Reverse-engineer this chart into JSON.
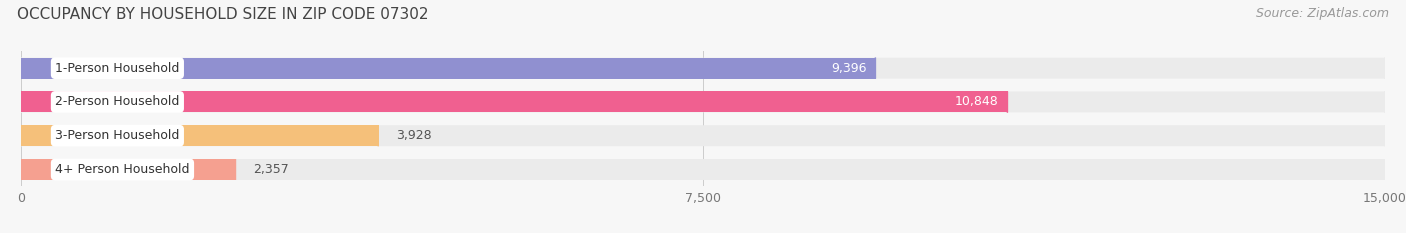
{
  "title": "OCCUPANCY BY HOUSEHOLD SIZE IN ZIP CODE 07302",
  "source": "Source: ZipAtlas.com",
  "categories": [
    "1-Person Household",
    "2-Person Household",
    "3-Person Household",
    "4+ Person Household"
  ],
  "values": [
    9396,
    10848,
    3928,
    2357
  ],
  "bar_colors": [
    "#9090d0",
    "#f06090",
    "#f5c07a",
    "#f5a090"
  ],
  "bar_bg_color": "#ebebeb",
  "xlim": [
    0,
    15000
  ],
  "xticks": [
    0,
    7500,
    15000
  ],
  "xtick_labels": [
    "0",
    "7,500",
    "15,000"
  ],
  "value_label_white": [
    true,
    true,
    false,
    false
  ],
  "background_color": "#f7f7f7",
  "title_fontsize": 11,
  "source_fontsize": 9,
  "bar_height": 0.62,
  "label_fontsize": 9,
  "value_fontsize": 9
}
